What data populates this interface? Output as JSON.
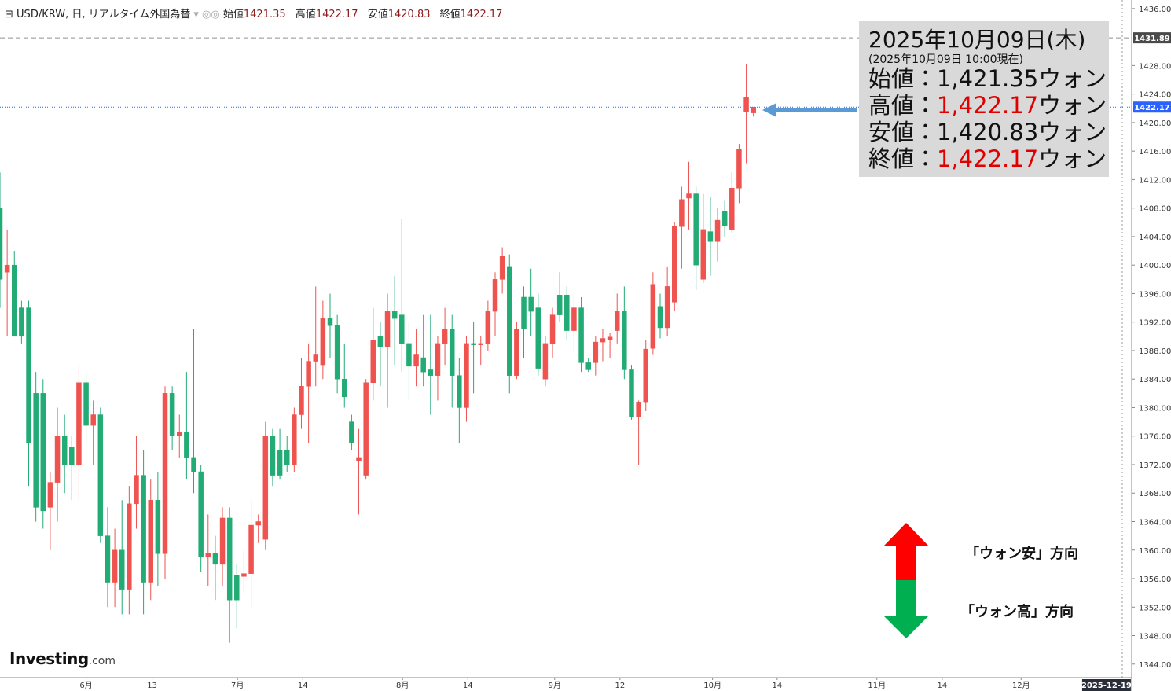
{
  "chart_data": {
    "type": "candlestick",
    "title": "USD/KRW, 日, リアルタイム外国為替",
    "legend": {
      "open_label": "始値",
      "high_label": "高値",
      "low_label": "安値",
      "close_label": "終値"
    },
    "up_color": "#ef5350",
    "down_color": "#22ab74",
    "open": [
      1408,
      1399,
      1400,
      1394,
      1394,
      1382,
      1382,
      1366,
      1369.5,
      1376,
      1374.5,
      1372,
      1383.5,
      1377.5,
      1379,
      1362,
      1355.5,
      1360,
      1354.5,
      1366.5,
      1370.5,
      1355.5,
      1367,
      1359.5,
      1382,
      1376,
      1376.5,
      1373,
      1371,
      1359,
      1359.5,
      1358,
      1364.5,
      1356.5,
      1356.3,
      1356.7,
      1363.5,
      1361.5,
      1376,
      1374,
      1374,
      1372,
      1379,
      1383,
      1386.5,
      1386,
      1392.5,
      1391.5,
      1384,
      1378,
      1372.5,
      1370.5,
      1383.5,
      1390,
      1388.5,
      1393.5,
      1393,
      1389,
      1385.8,
      1387,
      1385.3,
      1384.5,
      1389,
      1391,
      1384.5,
      1380,
      1389,
      1388.8,
      1389,
      1393.5,
      1398,
      1399.7,
      1384.5,
      1395.5,
      1395.5,
      1394,
      1384,
      1389,
      1395.8,
      1395.8,
      1390.8,
      1394,
      1386.3,
      1386.3,
      1389.2,
      1389.5,
      1390.8,
      1393.5,
      1385.3,
      1378.7,
      1380.7,
      1388.3,
      1394.2,
      1391.2,
      1394.8,
      1405.4,
      1409.4,
      1410,
      1398,
      1404.7,
      1403.3,
      1407.5,
      1405,
      1410.8,
      1421.5,
      1421.35
    ],
    "high": [
      1413,
      1405,
      1402,
      1395,
      1395,
      1385,
      1384,
      1371,
      1380,
      1379,
      1376,
      1386,
      1385,
      1381,
      1380,
      1366,
      1363,
      1367,
      1369,
      1376,
      1374,
      1370,
      1371,
      1383,
      1383,
      1379,
      1385,
      1391,
      1372,
      1365,
      1362,
      1366,
      1366,
      1358,
      1360,
      1367,
      1365,
      1378,
      1377,
      1377,
      1376,
      1380,
      1387,
      1389,
      1397,
      1395,
      1396,
      1393,
      1389,
      1379,
      1377,
      1384,
      1394,
      1392,
      1396,
      1398.5,
      1406.5,
      1392,
      1391,
      1393,
      1393,
      1390,
      1394,
      1393,
      1387,
      1390,
      1392,
      1390,
      1395,
      1399,
      1402.5,
      1401.5,
      1392,
      1397,
      1399.5,
      1396,
      1390,
      1394,
      1399,
      1397,
      1396,
      1395.5,
      1387,
      1390,
      1391,
      1390.5,
      1396,
      1397,
      1386,
      1381,
      1389.5,
      1399,
      1396,
      1399.7,
      1406,
      1411,
      1414.5,
      1411,
      1410,
      1409.5,
      1408,
      1409,
      1413,
      1417,
      1428.2,
      1422.17
    ],
    "low": [
      1394,
      1390,
      1390,
      1389,
      1369,
      1364,
      1363,
      1360,
      1364,
      1368,
      1367,
      1367,
      1375,
      1372,
      1361,
      1352,
      1352,
      1351,
      1351,
      1363,
      1351,
      1353,
      1355,
      1356,
      1374,
      1373,
      1370,
      1368,
      1357,
      1355,
      1353,
      1355,
      1347,
      1349,
      1354,
      1352,
      1361,
      1360,
      1369,
      1370,
      1371,
      1371,
      1377,
      1375,
      1383,
      1384,
      1387,
      1382,
      1380,
      1374,
      1365,
      1370,
      1381,
      1383,
      1380,
      1386,
      1385,
      1381,
      1383,
      1383,
      1379,
      1381,
      1386,
      1380,
      1375,
      1378,
      1382,
      1386,
      1388,
      1390,
      1396,
      1382,
      1384,
      1387,
      1390,
      1384.5,
      1383,
      1387,
      1392,
      1389.5,
      1388,
      1385,
      1385,
      1384.5,
      1386.5,
      1387,
      1389,
      1384,
      1378.3,
      1372,
      1379.5,
      1387.5,
      1389.7,
      1390,
      1393.5,
      1399.5,
      1405,
      1396.5,
      1397.5,
      1398.5,
      1400.5,
      1404,
      1404.5,
      1408.7,
      1414.3,
      1420.83
    ],
    "close": [
      1398,
      1400,
      1390,
      1390,
      1375,
      1366,
      1365.5,
      1369.5,
      1376,
      1372,
      1372,
      1383.5,
      1377.5,
      1379,
      1362,
      1355.5,
      1360,
      1354.5,
      1366.5,
      1370.5,
      1355.5,
      1367,
      1359.5,
      1382,
      1376,
      1376.5,
      1373,
      1371,
      1359,
      1359.5,
      1358,
      1364.5,
      1353,
      1353,
      1356.7,
      1363.5,
      1364,
      1376,
      1370.5,
      1370.5,
      1372,
      1379,
      1383,
      1386.5,
      1387.5,
      1392.5,
      1391.5,
      1384,
      1381.5,
      1375,
      1373,
      1383.5,
      1389.5,
      1388.5,
      1393.5,
      1392.5,
      1389,
      1385.8,
      1387.5,
      1385,
      1384.5,
      1389,
      1391,
      1384.5,
      1380,
      1389,
      1388.8,
      1389,
      1393.5,
      1398,
      1401.2,
      1384.5,
      1391,
      1391,
      1393.5,
      1385.5,
      1389,
      1393,
      1393,
      1390.8,
      1394,
      1386.3,
      1385.3,
      1389.2,
      1389.7,
      1389.9,
      1393.5,
      1385.3,
      1378.7,
      1380.7,
      1388.2,
      1397.3,
      1391.2,
      1397,
      1405.4,
      1409.2,
      1410,
      1400,
      1405,
      1403.3,
      1406.3,
      1405.5,
      1410.8,
      1416.3,
      1423.6,
      1422.17
    ],
    "xlim": [
      0,
      156.4
    ],
    "xticks": [
      {
        "value": 12,
        "label": "6月"
      },
      {
        "value": 21.2,
        "label": "13"
      },
      {
        "value": 33.1,
        "label": "7月"
      },
      {
        "value": 42.2,
        "label": "14"
      },
      {
        "value": 56.1,
        "label": "8月"
      },
      {
        "value": 65.2,
        "label": "14"
      },
      {
        "value": 77.3,
        "label": "9月"
      },
      {
        "value": 86.4,
        "label": "12"
      },
      {
        "value": 99.3,
        "label": "10月"
      },
      {
        "value": 108.3,
        "label": "14"
      },
      {
        "value": 122.2,
        "label": "11月"
      },
      {
        "value": 131.3,
        "label": "14"
      },
      {
        "value": 142.3,
        "label": "12月"
      }
    ],
    "x_marker": {
      "value": 154.2,
      "label": "2025-12-19"
    },
    "ylim": [
      1342.1,
      1437.2
    ],
    "yticks": [
      {
        "value": 1344,
        "label": "1344.00"
      },
      {
        "value": 1348,
        "label": "1348.00"
      },
      {
        "value": 1352,
        "label": "1352.00"
      },
      {
        "value": 1356,
        "label": "1356.00"
      },
      {
        "value": 1360,
        "label": "1360.00"
      },
      {
        "value": 1364,
        "label": "1364.00"
      },
      {
        "value": 1368,
        "label": "1368.00"
      },
      {
        "value": 1372,
        "label": "1372.00"
      },
      {
        "value": 1376,
        "label": "1376.00"
      },
      {
        "value": 1380,
        "label": "1380.00"
      },
      {
        "value": 1384,
        "label": "1384.00"
      },
      {
        "value": 1388,
        "label": "1388.00"
      },
      {
        "value": 1392,
        "label": "1392.00"
      },
      {
        "value": 1396,
        "label": "1396.00"
      },
      {
        "value": 1400,
        "label": "1400.00"
      },
      {
        "value": 1404,
        "label": "1404.00"
      },
      {
        "value": 1408,
        "label": "1408.00"
      },
      {
        "value": 1412,
        "label": "1412.00"
      },
      {
        "value": 1416,
        "label": "1416.00"
      },
      {
        "value": 1420,
        "label": "1420.00"
      },
      {
        "value": 1424,
        "label": "1424.00"
      },
      {
        "value": 1428,
        "label": "1428.00"
      },
      {
        "value": 1436,
        "label": "1436.00"
      }
    ],
    "price_lines": [
      {
        "value": 1431.89,
        "color": "#4a4a4a",
        "style": "dashed"
      },
      {
        "value": 1422.17,
        "color": "#2962ff",
        "style": "dotted"
      }
    ],
    "grid": false,
    "annotation": {
      "date": "2025年10月09日(木)",
      "note": "(2025年10月09日 10:00現在)",
      "lines": [
        {
          "label": "始値：",
          "value": "1,421.35",
          "unit": "ウォン",
          "color": "#111111"
        },
        {
          "label": "高値：",
          "value": "1,422.17",
          "unit": "ウォン",
          "color": "#e00000"
        },
        {
          "label": "安値：",
          "value": "1,420.83",
          "unit": "ウォン",
          "color": "#111111"
        },
        {
          "label": "終値：",
          "value": "1,422.17",
          "unit": "ウォン",
          "color": "#e00000"
        }
      ],
      "up_direction": "「ウォン安」方向",
      "down_direction": "「ウォン高」方向"
    },
    "logo": {
      "brand": "Investing",
      "suffix": ".com"
    }
  }
}
